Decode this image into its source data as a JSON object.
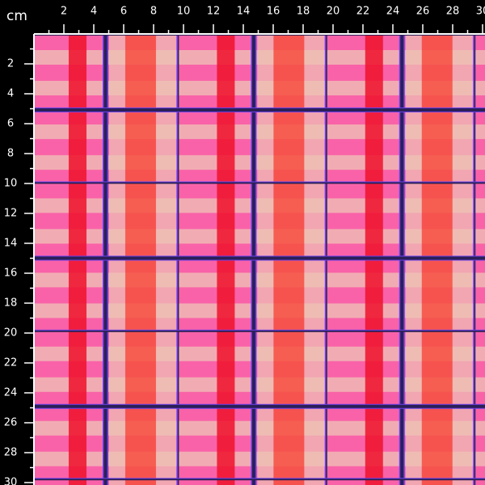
{
  "unit": "cm",
  "top_ruler": {
    "labels": [
      2,
      4,
      6,
      8,
      10,
      12,
      14,
      16,
      18,
      20,
      22,
      24,
      26,
      28,
      30
    ]
  },
  "left_ruler": {
    "labels": [
      2,
      4,
      6,
      8,
      10,
      12,
      14,
      16,
      18,
      20,
      22,
      24,
      26,
      28,
      30
    ]
  }
}
